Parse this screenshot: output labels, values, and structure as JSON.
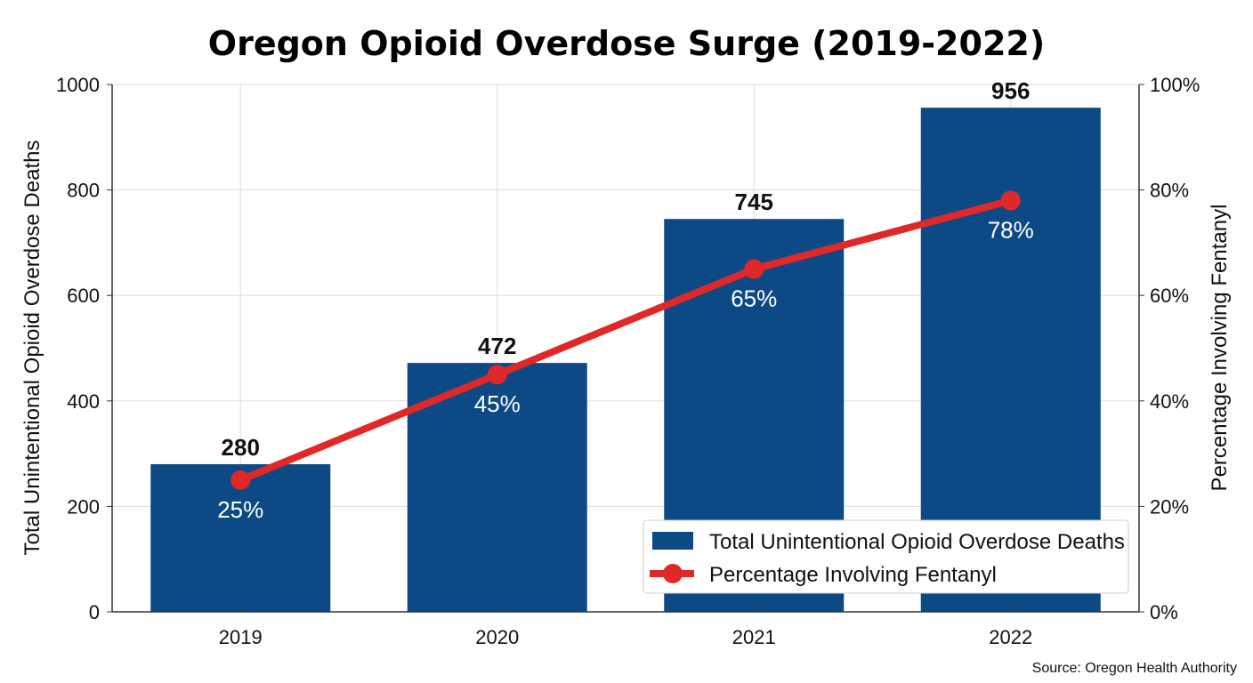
{
  "chart_data": {
    "type": "bar",
    "title": "Oregon Opioid Overdose Surge (2019-2022)",
    "categories": [
      "2019",
      "2020",
      "2021",
      "2022"
    ],
    "series": [
      {
        "name": "Total Unintentional Opioid Overdose Deaths",
        "type": "bar",
        "axis": "left",
        "values": [
          280,
          472,
          745,
          956
        ],
        "labels": [
          "280",
          "472",
          "745",
          "956"
        ],
        "color": "#0d4a85"
      },
      {
        "name": "Percentage Involving Fentanyl",
        "type": "line",
        "axis": "right",
        "values": [
          25,
          45,
          65,
          78
        ],
        "labels": [
          "25%",
          "45%",
          "65%",
          "78%"
        ],
        "color": "#e02828"
      }
    ],
    "ylabel": "Total Unintentional Opioid Overdose Deaths",
    "ylabel_right": "Percentage Involving Fentanyl",
    "ylim": [
      0,
      1000
    ],
    "ylim_right": [
      0,
      100
    ],
    "yticks": [
      "0",
      "200",
      "400",
      "600",
      "800",
      "1000"
    ],
    "yticks_right": [
      "0%",
      "20%",
      "40%",
      "60%",
      "80%",
      "100%"
    ],
    "grid": true,
    "legend_position": "bottom-right",
    "source": "Source: Oregon Health Authority"
  }
}
